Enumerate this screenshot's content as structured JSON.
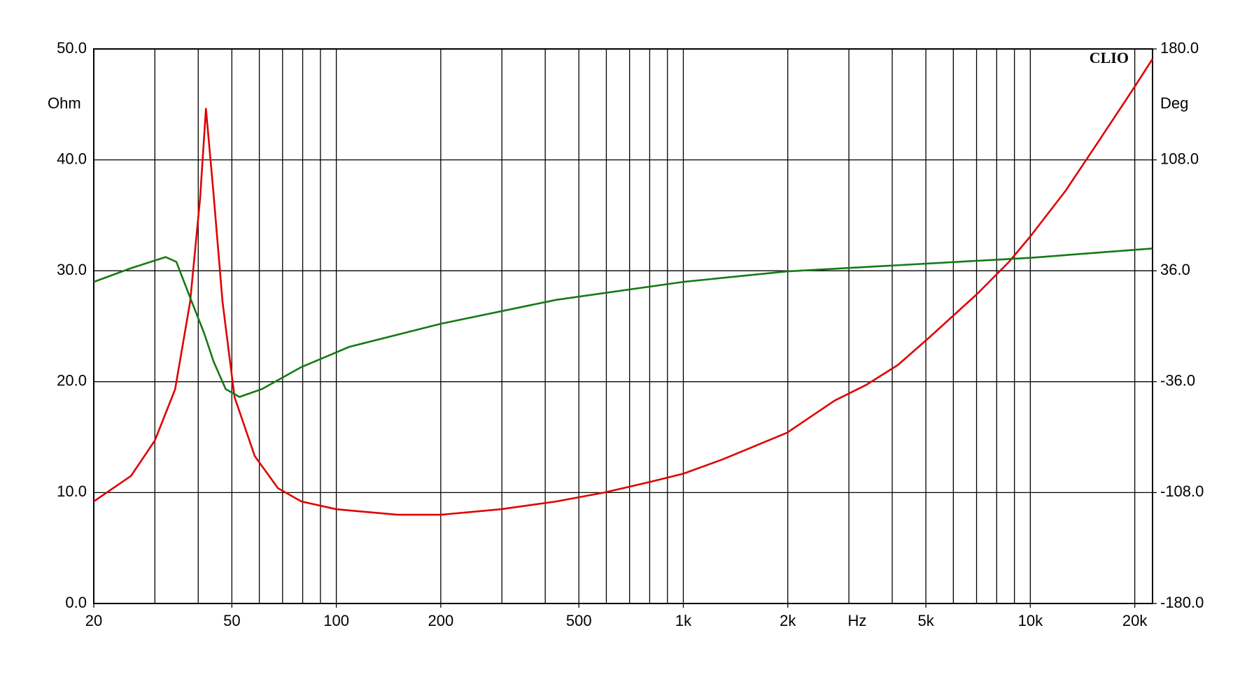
{
  "chart_data": {
    "type": "line",
    "title": "CLIO",
    "y_label": "Ohm",
    "y2_label": "Deg",
    "x_label": "Hz",
    "log_x": true,
    "grid": true,
    "xlim": [
      20,
      22500
    ],
    "xticks": [
      20,
      50,
      100,
      200,
      500,
      {
        "value": 1000,
        "label": "1k"
      },
      {
        "value": 2000,
        "label": "2k"
      },
      {
        "value": 5000,
        "label": "5k"
      },
      {
        "value": 10000,
        "label": "10k"
      },
      {
        "value": 20000,
        "label": "20k"
      }
    ],
    "xgrid": [
      20,
      30,
      40,
      50,
      60,
      70,
      80,
      90,
      100,
      200,
      300,
      400,
      500,
      600,
      700,
      800,
      900,
      1000,
      2000,
      3000,
      4000,
      5000,
      6000,
      7000,
      8000,
      9000,
      10000,
      20000
    ],
    "ylim": [
      0,
      50
    ],
    "yticks": [
      {
        "value": 0,
        "label": "0.0"
      },
      {
        "value": 10,
        "label": "10.0"
      },
      {
        "value": 20,
        "label": "20.0"
      },
      {
        "value": 30,
        "label": "30.0"
      },
      {
        "value": 40,
        "label": "40.0"
      },
      {
        "value": 50,
        "label": "50.0"
      }
    ],
    "y2lim": [
      -180,
      180
    ],
    "y2ticks": [
      {
        "value": -180,
        "label": "-180.0"
      },
      {
        "value": -108,
        "label": "-108.0"
      },
      {
        "value": -36,
        "label": "-36.0"
      },
      {
        "value": 36,
        "label": "36.0"
      },
      {
        "value": 108,
        "label": "108.0"
      },
      {
        "value": 180,
        "label": "180.0"
      }
    ],
    "series": [
      {
        "color": "#e00000",
        "x": [
          20,
          25.6,
          30,
          34.3,
          37.9,
          40.5,
          42.1,
          44.2,
          47,
          50.9,
          58.2,
          67.9,
          79.3,
          100,
          150,
          200,
          298,
          430,
          591,
          812,
          1000,
          1300,
          1990,
          2730,
          3360,
          4150,
          5120,
          7020,
          8680,
          10000,
          12630,
          15600,
          20000,
          22500
        ],
        "values": [
          9.2,
          11.5,
          14.7,
          19.3,
          27.2,
          36.5,
          44.6,
          37.2,
          27.2,
          18.6,
          13.3,
          10.4,
          9.2,
          8.5,
          8.0,
          8.0,
          8.5,
          9.2,
          10.0,
          11.0,
          11.7,
          13.0,
          15.4,
          18.3,
          19.7,
          21.5,
          24.0,
          27.9,
          30.8,
          33.1,
          37.2,
          41.5,
          46.6,
          49.1
        ]
      },
      {
        "color": "#157a15",
        "axis": "y2",
        "x": [
          20,
          25.6,
          32.2,
          34.6,
          37.9,
          41.6,
          44.3,
          48,
          52.6,
          61,
          79.3,
          109,
          200,
          430,
          1000,
          1990,
          10000,
          22500
        ],
        "values": [
          28.8,
          37.7,
          44.9,
          41.8,
          18.6,
          -4.5,
          -23.0,
          -40.8,
          -45.9,
          -40.8,
          -26.5,
          -13.4,
          1.6,
          17.1,
          28.8,
          35.6,
          44.4,
          50.5
        ]
      }
    ]
  }
}
